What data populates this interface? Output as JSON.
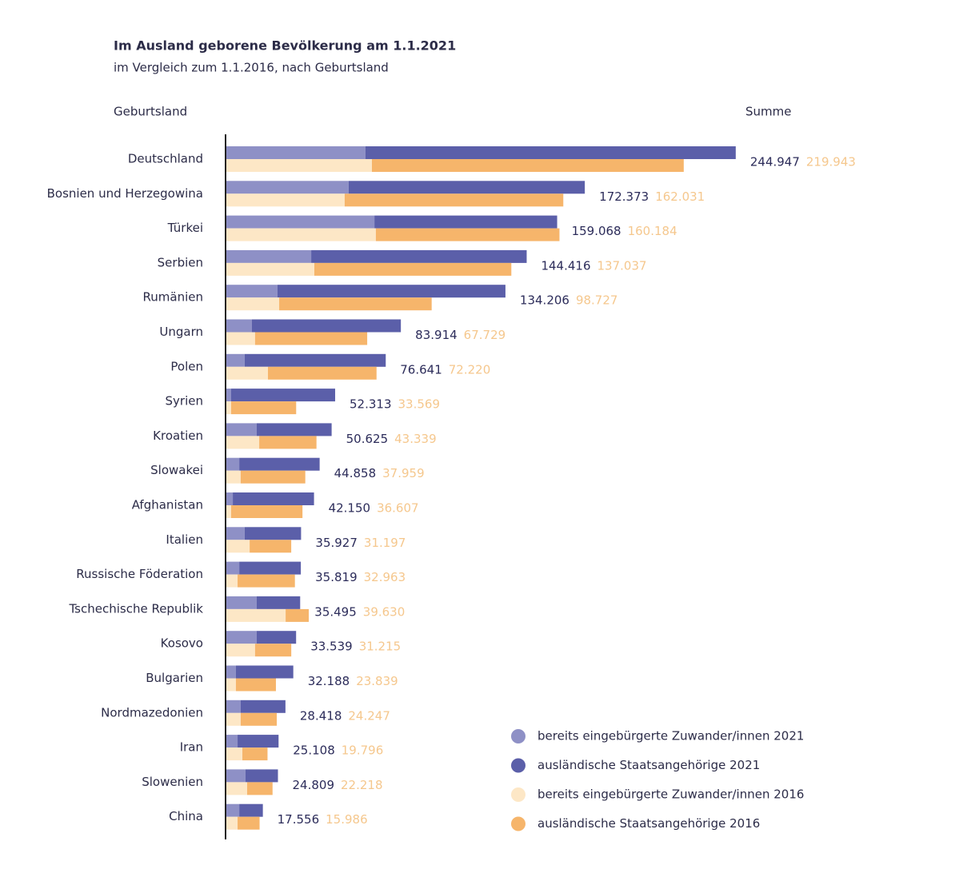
{
  "chart_data": {
    "type": "bar",
    "orientation": "horizontal",
    "stacked": true,
    "title": "Im Ausland geborene Bevölkerung am 1.1.2021",
    "subtitle": "im Vergleich zum 1.1.2016, nach Geburtsland",
    "category_header": "Geburtsland",
    "total_header": "Summe",
    "categories": [
      "Deutschland",
      "Bosnien und Herzegowina",
      "Türkei",
      "Serbien",
      "Rumänien",
      "Ungarn",
      "Polen",
      "Syrien",
      "Kroatien",
      "Slowakei",
      "Afghanistan",
      "Italien",
      "Russische Föderation",
      "Tschechische Republik",
      "Kosovo",
      "Bulgarien",
      "Nordmazedonien",
      "Iran",
      "Slowenien",
      "China"
    ],
    "xlim": [
      0,
      250000
    ],
    "series": [
      {
        "name": "bereits eingebürgerte Zuwander/innen 2021",
        "color": "#8e90c6",
        "stack": 0,
        "values": [
          66900,
          58800,
          71200,
          40800,
          24600,
          12300,
          8800,
          2300,
          14600,
          6200,
          3100,
          8800,
          6200,
          14600,
          14600,
          4600,
          6900,
          5400,
          9200,
          6200
        ]
      },
      {
        "name": "ausländische Staatsangehörige 2021",
        "color": "#5b5fa9",
        "stack": 0,
        "values": [
          178047,
          113573,
          87868,
          103616,
          109606,
          71614,
          67841,
          50013,
          36025,
          38658,
          39050,
          27127,
          29619,
          20895,
          18939,
          27588,
          21518,
          19708,
          15609,
          11356
        ]
      },
      {
        "name": "bereits eingebürgerte Zuwander/innen 2016",
        "color": "#fde7c6",
        "stack": 1,
        "values": [
          70000,
          56900,
          71900,
          42300,
          25400,
          13800,
          20000,
          2300,
          15800,
          6900,
          2300,
          11200,
          5400,
          28500,
          13800,
          4600,
          6900,
          7700,
          10000,
          5400
        ]
      },
      {
        "name": "ausländische Staatsangehörige 2016",
        "color": "#f6b56b",
        "stack": 1,
        "values": [
          149943,
          105131,
          88284,
          94737,
          73327,
          53929,
          52220,
          31269,
          27539,
          31059,
          34307,
          19997,
          27563,
          11130,
          17415,
          19239,
          17347,
          12096,
          12218,
          10586
        ]
      }
    ],
    "totals_2021": {
      "color": "#2c2c5a",
      "values": [
        244947,
        172373,
        159068,
        144416,
        134206,
        83914,
        76641,
        52313,
        50625,
        44858,
        42150,
        35927,
        35819,
        35495,
        33539,
        32188,
        28418,
        25108,
        24809,
        17556
      ],
      "value_labels": [
        "244.947",
        "172.373",
        "159.068",
        "144.416",
        "134.206",
        "83.914",
        "76.641",
        "52.313",
        "50.625",
        "44.858",
        "42.150",
        "35.927",
        "35.819",
        "35.495",
        "33.539",
        "32.188",
        "28.418",
        "25.108",
        "24.809",
        "17.556"
      ]
    },
    "totals_2016": {
      "color": "#f2b567",
      "values": [
        219943,
        162031,
        160184,
        137037,
        98727,
        67729,
        72220,
        33569,
        43339,
        37959,
        36607,
        31197,
        32963,
        39630,
        31215,
        23839,
        24247,
        19796,
        22218,
        15986
      ],
      "value_labels": [
        "219.943",
        "162.031",
        "160.184",
        "137.037",
        "98.727",
        "67.729",
        "72.220",
        "33.569",
        "43.339",
        "37.959",
        "36.607",
        "31.197",
        "32.963",
        "39.630",
        "31.215",
        "23.839",
        "24.247",
        "19.796",
        "22.218",
        "15.986"
      ]
    }
  }
}
